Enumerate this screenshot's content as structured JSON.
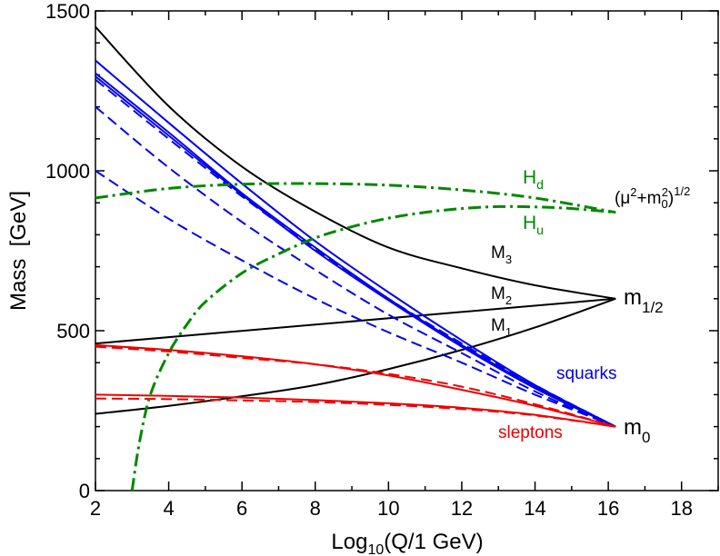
{
  "chart_data": {
    "type": "line",
    "xlabel": {
      "base": "Log",
      "sub": "10",
      "rest": "(Q/1 GeV)"
    },
    "ylabel": "Mass  [GeV]",
    "xlim": [
      2,
      19
    ],
    "ylim": [
      0,
      1500
    ],
    "x_ticks": [
      2,
      4,
      6,
      8,
      10,
      12,
      14,
      16,
      18
    ],
    "y_ticks": [
      0,
      500,
      1000,
      1500
    ],
    "grid": false,
    "colors": {
      "gaugino": "#000000",
      "squark": "#0000ee",
      "slepton": "#ee0000",
      "higgs": "#008800"
    },
    "series": [
      {
        "name": "M3",
        "group": "gaugino",
        "style": "solid",
        "x": [
          2,
          4,
          6,
          8,
          10,
          12,
          14,
          16.2
        ],
        "y": [
          1450,
          1202,
          1013,
          872,
          760,
          695,
          642,
          600
        ]
      },
      {
        "name": "M2",
        "group": "gaugino",
        "style": "solid",
        "x": [
          2,
          16.2
        ],
        "y": [
          460,
          600
        ]
      },
      {
        "name": "M1",
        "group": "gaugino",
        "style": "solid",
        "x": [
          2,
          4,
          6,
          8,
          10,
          12,
          14,
          16.2
        ],
        "y": [
          240,
          265,
          295,
          330,
          380,
          440,
          510,
          600
        ]
      },
      {
        "group": "squark",
        "style": "solid",
        "x": [
          2,
          4,
          6,
          8,
          10,
          12,
          14,
          16.2
        ],
        "y": [
          1345,
          1150,
          960,
          780,
          620,
          470,
          330,
          200
        ]
      },
      {
        "group": "squark",
        "style": "solid",
        "x": [
          2,
          4,
          6,
          8,
          10,
          12,
          14,
          16.2
        ],
        "y": [
          1305,
          1120,
          930,
          760,
          600,
          455,
          325,
          200
        ]
      },
      {
        "group": "squark",
        "style": "solid",
        "x": [
          2,
          4,
          6,
          8,
          10,
          12,
          14,
          16.2
        ],
        "y": [
          1295,
          1110,
          925,
          750,
          595,
          450,
          320,
          200
        ]
      },
      {
        "group": "squark",
        "style": "dashed",
        "x": [
          2,
          4,
          6,
          8,
          10,
          12,
          14,
          16.2
        ],
        "y": [
          1285,
          1100,
          920,
          755,
          600,
          460,
          330,
          200
        ]
      },
      {
        "group": "squark",
        "style": "dashed",
        "x": [
          2,
          4,
          6,
          8,
          10,
          12,
          14,
          16.2
        ],
        "y": [
          1200,
          1010,
          840,
          690,
          550,
          430,
          310,
          200
        ]
      },
      {
        "group": "squark",
        "style": "dashed",
        "x": [
          2,
          4,
          6,
          8,
          10,
          12,
          14,
          16.2
        ],
        "y": [
          1000,
          850,
          720,
          600,
          495,
          400,
          300,
          200
        ]
      },
      {
        "group": "slepton",
        "style": "solid",
        "x": [
          2,
          4,
          6,
          8,
          10,
          12,
          14,
          16.2
        ],
        "y": [
          455,
          440,
          420,
          395,
          360,
          315,
          265,
          200
        ]
      },
      {
        "group": "slepton",
        "style": "dashed",
        "x": [
          2,
          4,
          6,
          8,
          10,
          12,
          14,
          16.2
        ],
        "y": [
          450,
          435,
          415,
          395,
          365,
          325,
          270,
          200
        ]
      },
      {
        "group": "slepton",
        "style": "solid",
        "x": [
          2,
          4,
          6,
          8,
          10,
          12,
          14,
          16.2
        ],
        "y": [
          300,
          296,
          291,
          283,
          273,
          259,
          237,
          200
        ]
      },
      {
        "group": "slepton",
        "style": "dashed",
        "x": [
          2,
          4,
          6,
          8,
          10,
          12,
          14,
          16.2
        ],
        "y": [
          288,
          286,
          282,
          277,
          268,
          255,
          235,
          200
        ]
      },
      {
        "name": "Hd",
        "group": "higgs",
        "style": "dashdot",
        "x": [
          2,
          4,
          6,
          8,
          10,
          12,
          14,
          16.2
        ],
        "y": [
          915,
          945,
          958,
          960,
          955,
          940,
          915,
          870
        ]
      },
      {
        "name": "Hu",
        "group": "higgs",
        "style": "dashdot",
        "x": [
          3,
          3.2,
          3.5,
          4,
          4.5,
          5,
          6,
          7,
          8,
          9,
          10,
          11,
          12,
          13,
          14,
          15,
          16.2
        ],
        "y": [
          0,
          150,
          300,
          430,
          520,
          590,
          680,
          740,
          790,
          825,
          852,
          870,
          882,
          888,
          887,
          882,
          870
        ]
      }
    ],
    "annotations": {
      "m_half": {
        "base": "m",
        "sub": "1/2"
      },
      "m0": {
        "base": "m",
        "sub": "0"
      },
      "M3": {
        "base": "M",
        "sub": "3"
      },
      "M2": {
        "base": "M",
        "sub": "2"
      },
      "M1": {
        "base": "M",
        "sub": "1"
      },
      "Hd": {
        "base": "H",
        "sub": "d"
      },
      "Hu": {
        "base": "H",
        "sub": "u"
      },
      "squarks": "squarks",
      "sleptons": "sleptons",
      "mu_term": {
        "open": "(μ",
        "sq": "2",
        "plus": "+m",
        "sub": "0",
        "sq2": "2",
        "close": ")",
        "power": "1/2"
      }
    }
  }
}
